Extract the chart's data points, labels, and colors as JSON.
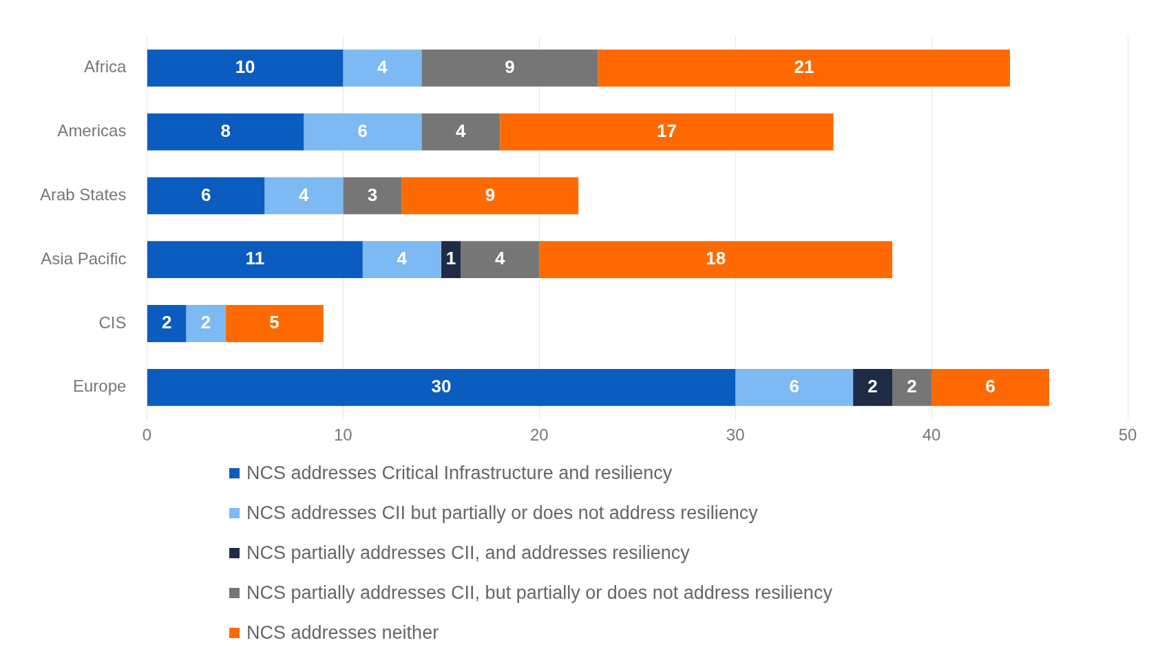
{
  "chart_data": {
    "type": "bar",
    "orientation": "horizontal",
    "stacked": true,
    "categories": [
      "Africa",
      "Americas",
      "Arab States",
      "Asia Pacific",
      "CIS",
      "Europe"
    ],
    "series": [
      {
        "name": "NCS addresses Critical Infrastructure and resiliency",
        "color": "#0b5cbf",
        "values": [
          10,
          8,
          6,
          11,
          2,
          30
        ]
      },
      {
        "name": "NCS addresses CII but partially or does not address resiliency",
        "color": "#7db9f2",
        "values": [
          4,
          6,
          4,
          4,
          2,
          6
        ]
      },
      {
        "name": "NCS partially addresses CII, and addresses resiliency",
        "color": "#1e2b45",
        "values": [
          null,
          null,
          null,
          1,
          null,
          2
        ]
      },
      {
        "name": "NCS partially addresses CII, but partially or does not address resiliency",
        "color": "#767676",
        "values": [
          9,
          4,
          3,
          4,
          null,
          2
        ]
      },
      {
        "name": "NCS addresses neither",
        "color": "#ff6a00",
        "values": [
          21,
          17,
          9,
          18,
          5,
          6
        ]
      }
    ],
    "xlim": [
      0,
      50
    ],
    "xticks": [
      0,
      10,
      20,
      30,
      40,
      50
    ],
    "grid": "x",
    "legend": "bottom",
    "data_labels": true
  }
}
